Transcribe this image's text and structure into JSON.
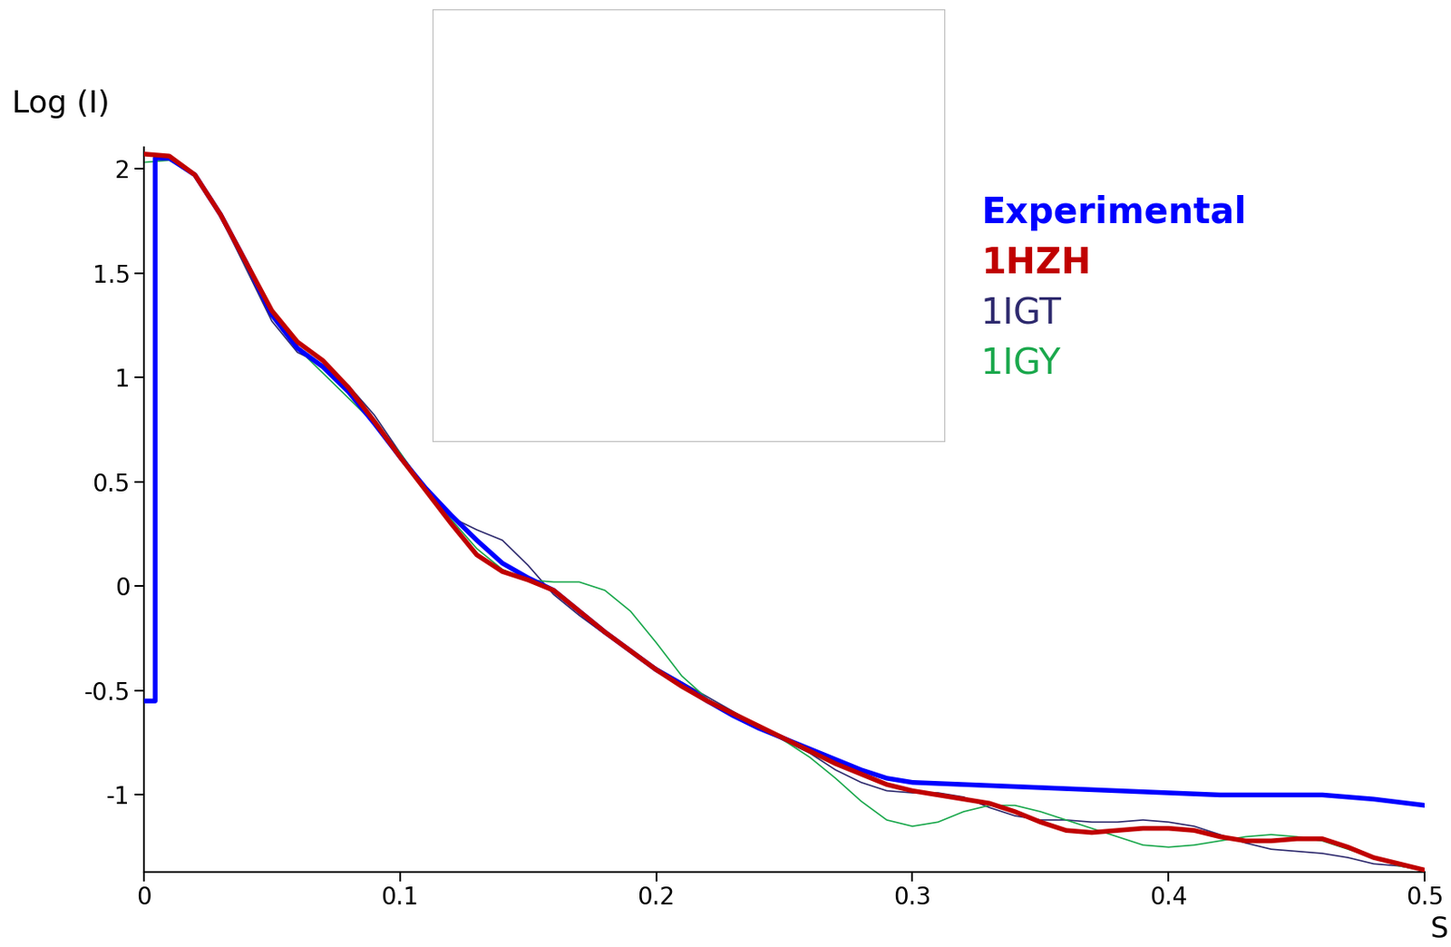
{
  "chart_data": {
    "type": "line",
    "x_label": "S",
    "y_label": "Log (I)",
    "xlim": [
      0,
      0.5
    ],
    "xticks": [
      0,
      0.1,
      0.2,
      0.3,
      0.4,
      0.5
    ],
    "ylim": [
      -1.37,
      2.1
    ],
    "yticks": [
      -1,
      -0.5,
      0,
      0.5,
      1,
      1.5,
      2
    ],
    "grid": false,
    "series": [
      {
        "name": "Experimental",
        "color": "#0000ff",
        "x": [
          0,
          0.0045,
          0.0045,
          0.01,
          0.02,
          0.03,
          0.04,
          0.05,
          0.06,
          0.07,
          0.08,
          0.09,
          0.1,
          0.11,
          0.12,
          0.13,
          0.14,
          0.15,
          0.16,
          0.17,
          0.18,
          0.19,
          0.2,
          0.21,
          0.22,
          0.23,
          0.24,
          0.25,
          0.26,
          0.27,
          0.28,
          0.29,
          0.3,
          0.32,
          0.34,
          0.36,
          0.38,
          0.4,
          0.42,
          0.44,
          0.46,
          0.48,
          0.5
        ],
        "values": [
          -0.55,
          -0.55,
          2.05,
          2.05,
          1.97,
          1.78,
          1.55,
          1.3,
          1.14,
          1.05,
          0.93,
          0.78,
          0.62,
          0.47,
          0.34,
          0.22,
          0.11,
          0.04,
          -0.02,
          -0.12,
          -0.22,
          -0.31,
          -0.4,
          -0.47,
          -0.55,
          -0.62,
          -0.68,
          -0.73,
          -0.78,
          -0.83,
          -0.88,
          -0.92,
          -0.94,
          -0.95,
          -0.96,
          -0.97,
          -0.98,
          -0.99,
          -1.0,
          -1.0,
          -1.0,
          -1.02,
          -1.05
        ]
      },
      {
        "name": "1HZH",
        "color": "#c00000",
        "x": [
          0,
          0.01,
          0.02,
          0.03,
          0.04,
          0.05,
          0.06,
          0.07,
          0.08,
          0.09,
          0.1,
          0.11,
          0.12,
          0.13,
          0.14,
          0.15,
          0.16,
          0.17,
          0.18,
          0.19,
          0.2,
          0.21,
          0.22,
          0.23,
          0.24,
          0.25,
          0.26,
          0.27,
          0.28,
          0.29,
          0.3,
          0.31,
          0.32,
          0.33,
          0.34,
          0.35,
          0.36,
          0.37,
          0.38,
          0.39,
          0.4,
          0.41,
          0.42,
          0.43,
          0.44,
          0.45,
          0.46,
          0.47,
          0.48,
          0.49,
          0.5
        ],
        "values": [
          2.07,
          2.06,
          1.97,
          1.78,
          1.55,
          1.32,
          1.17,
          1.08,
          0.95,
          0.79,
          0.62,
          0.46,
          0.3,
          0.15,
          0.07,
          0.03,
          -0.02,
          -0.12,
          -0.22,
          -0.31,
          -0.4,
          -0.48,
          -0.55,
          -0.61,
          -0.67,
          -0.73,
          -0.79,
          -0.85,
          -0.9,
          -0.95,
          -0.98,
          -1.0,
          -1.02,
          -1.04,
          -1.08,
          -1.13,
          -1.17,
          -1.18,
          -1.17,
          -1.16,
          -1.16,
          -1.17,
          -1.2,
          -1.22,
          -1.22,
          -1.21,
          -1.21,
          -1.25,
          -1.3,
          -1.33,
          -1.36
        ]
      },
      {
        "name": "1IGT",
        "color": "#2e2a6e",
        "x": [
          0,
          0.01,
          0.02,
          0.03,
          0.04,
          0.05,
          0.06,
          0.07,
          0.08,
          0.09,
          0.1,
          0.11,
          0.12,
          0.13,
          0.14,
          0.15,
          0.16,
          0.17,
          0.18,
          0.19,
          0.2,
          0.21,
          0.22,
          0.23,
          0.24,
          0.25,
          0.26,
          0.27,
          0.28,
          0.29,
          0.3,
          0.31,
          0.32,
          0.33,
          0.34,
          0.35,
          0.36,
          0.37,
          0.38,
          0.39,
          0.4,
          0.41,
          0.42,
          0.43,
          0.44,
          0.45,
          0.46,
          0.47,
          0.48,
          0.49,
          0.5
        ],
        "values": [
          2.07,
          2.06,
          1.97,
          1.77,
          1.52,
          1.27,
          1.12,
          1.06,
          0.96,
          0.82,
          0.64,
          0.46,
          0.33,
          0.27,
          0.22,
          0.1,
          -0.04,
          -0.14,
          -0.23,
          -0.31,
          -0.39,
          -0.46,
          -0.53,
          -0.6,
          -0.67,
          -0.74,
          -0.8,
          -0.88,
          -0.94,
          -0.98,
          -0.99,
          -0.99,
          -1.01,
          -1.06,
          -1.1,
          -1.12,
          -1.12,
          -1.13,
          -1.13,
          -1.12,
          -1.13,
          -1.15,
          -1.19,
          -1.23,
          -1.26,
          -1.27,
          -1.28,
          -1.3,
          -1.33,
          -1.34,
          -1.36
        ]
      },
      {
        "name": "1IGY",
        "color": "#1aa84c",
        "x": [
          0,
          0.01,
          0.02,
          0.03,
          0.04,
          0.05,
          0.06,
          0.07,
          0.08,
          0.09,
          0.1,
          0.11,
          0.12,
          0.13,
          0.14,
          0.15,
          0.16,
          0.17,
          0.18,
          0.19,
          0.2,
          0.21,
          0.22,
          0.23,
          0.24,
          0.25,
          0.26,
          0.27,
          0.28,
          0.29,
          0.3,
          0.31,
          0.32,
          0.33,
          0.34,
          0.35,
          0.36,
          0.37,
          0.38,
          0.39,
          0.4,
          0.41,
          0.42,
          0.43,
          0.44,
          0.45,
          0.46,
          0.47,
          0.48,
          0.49,
          0.5
        ],
        "values": [
          2.03,
          2.04,
          1.97,
          1.78,
          1.53,
          1.3,
          1.14,
          1.02,
          0.9,
          0.78,
          0.64,
          0.47,
          0.32,
          0.18,
          0.08,
          0.03,
          0.02,
          0.02,
          -0.02,
          -0.12,
          -0.27,
          -0.43,
          -0.54,
          -0.61,
          -0.67,
          -0.74,
          -0.82,
          -0.92,
          -1.03,
          -1.12,
          -1.15,
          -1.13,
          -1.08,
          -1.05,
          -1.05,
          -1.08,
          -1.12,
          -1.16,
          -1.2,
          -1.24,
          -1.25,
          -1.24,
          -1.22,
          -1.2,
          -1.19,
          -1.2,
          -1.22,
          -1.26,
          -1.3,
          -1.34,
          -1.36
        ]
      }
    ]
  }
}
